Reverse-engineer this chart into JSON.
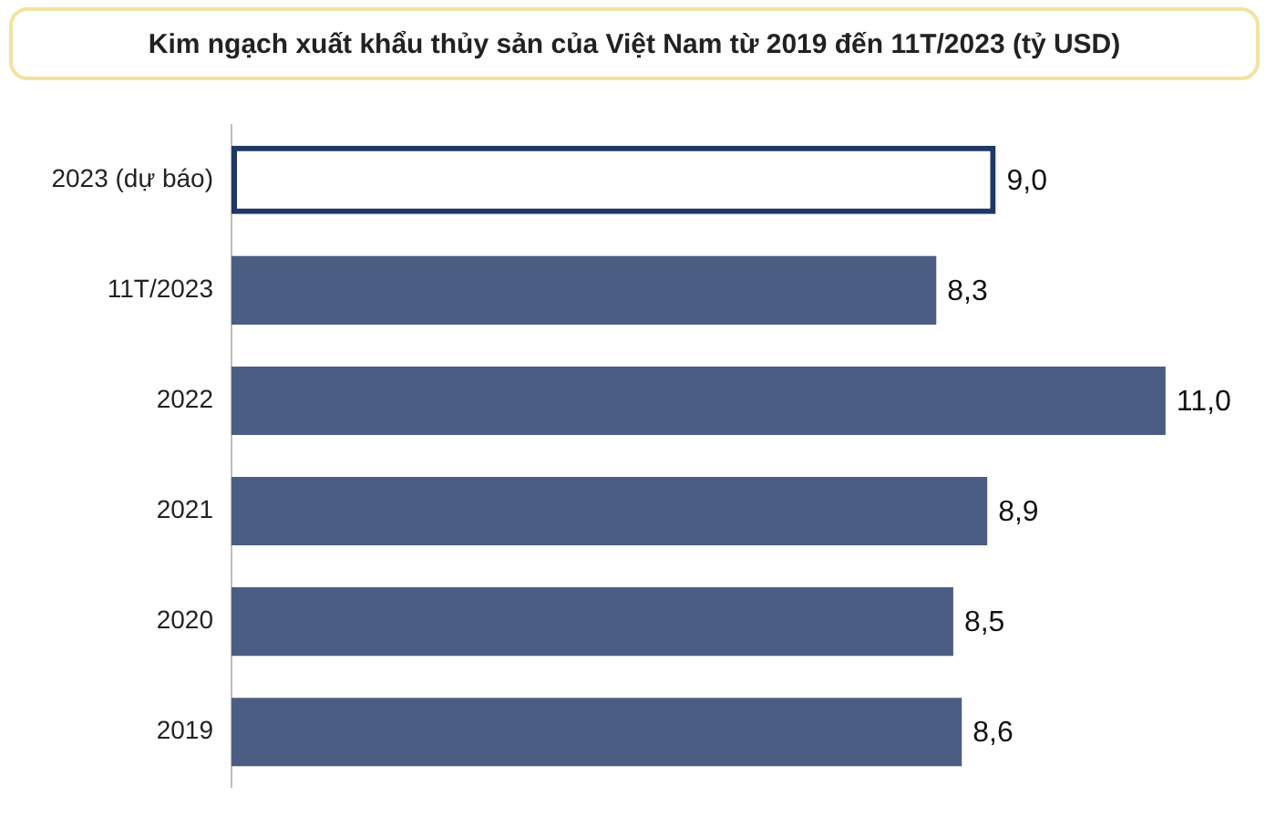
{
  "chart_data": {
    "type": "bar",
    "orientation": "horizontal",
    "title": "Kim ngạch xuất khẩu thủy sản của Việt Nam từ 2019 đến 11T/2023 (tỷ USD)",
    "categories": [
      "2023 (dự báo)",
      "11T/2023",
      "2022",
      "2021",
      "2020",
      "2019"
    ],
    "series": [
      {
        "color": "#4b5d82",
        "colors": [
          "#1f3864",
          "#4b5d82",
          "#4b5d82",
          "#4b5d82",
          "#4b5d82",
          "#4b5d82"
        ],
        "values": [
          9.0,
          8.3,
          11.0,
          8.9,
          8.5,
          8.6
        ],
        "value_labels": [
          "9,0",
          "8,3",
          "11,0",
          "8,9",
          "8,5",
          "8,6"
        ]
      }
    ],
    "grid": false,
    "legend": false
  }
}
